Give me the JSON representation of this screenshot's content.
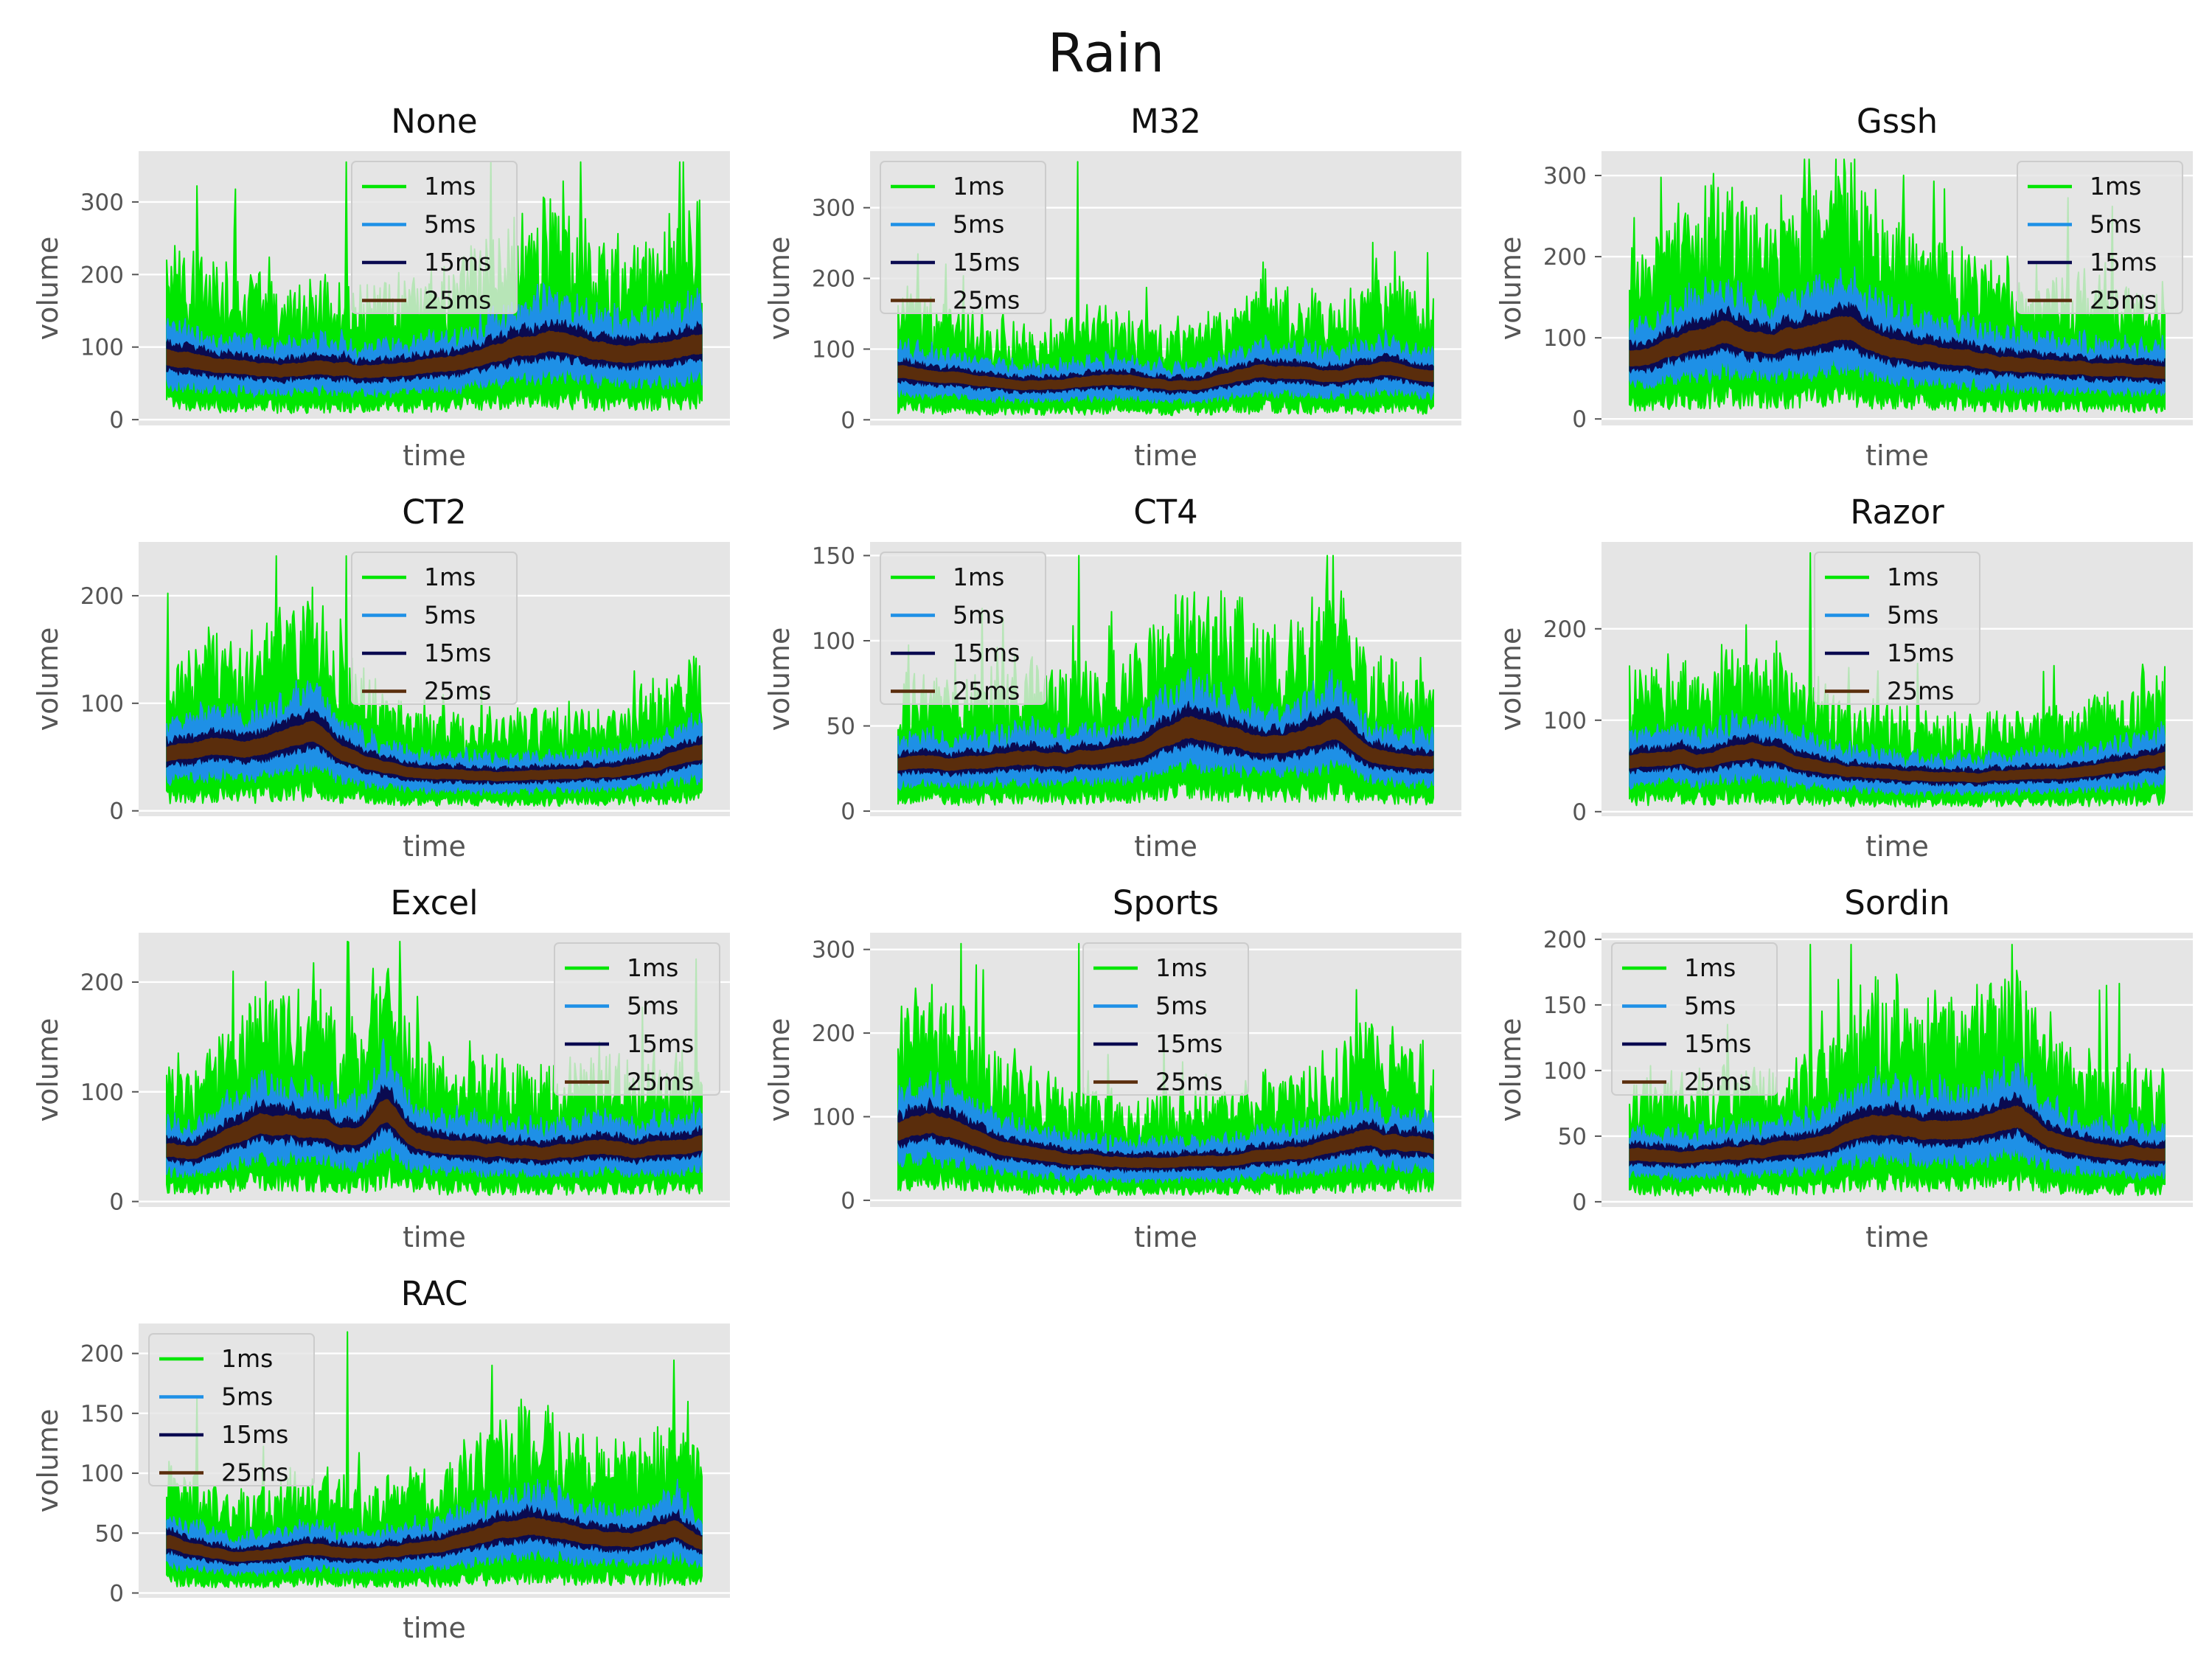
{
  "figure": {
    "title": "Rain",
    "colors": {
      "axes_bg": "#e5e5e5",
      "grid": "#ffffff",
      "text": "#111111",
      "tick_text": "#555555",
      "legend_bg": "#e5e5e5",
      "legend_edge": "#cccccc"
    }
  },
  "chart_data": [
    {
      "type": "line",
      "title": "None",
      "xlabel": "time",
      "ylabel": "volume",
      "ylim": [
        -8,
        370
      ],
      "yticks": [
        0,
        100,
        200,
        300
      ],
      "legend_loc": "upper center",
      "base_profile": [
        88,
        84,
        80,
        75,
        70,
        72,
        76,
        74,
        70,
        68,
        72,
        78,
        82,
        90,
        100,
        108,
        112,
        105,
        98,
        94,
        96,
        102,
        110
      ],
      "peak_max": 355,
      "series": [
        {
          "name": "1ms",
          "color": "#00e600"
        },
        {
          "name": "5ms",
          "color": "#1e90e6"
        },
        {
          "name": "15ms",
          "color": "#0a0a50"
        },
        {
          "name": "25ms",
          "color": "#5a2d0c"
        }
      ]
    },
    {
      "type": "line",
      "title": "M32",
      "xlabel": "time",
      "ylabel": "volume",
      "ylim": [
        -8,
        380
      ],
      "yticks": [
        0,
        100,
        200,
        300
      ],
      "legend_loc": "upper left",
      "base_profile": [
        70,
        66,
        62,
        58,
        55,
        52,
        50,
        54,
        58,
        60,
        56,
        52,
        50,
        58,
        66,
        72,
        70,
        68,
        65,
        70,
        76,
        68,
        62
      ],
      "peak_max": 365,
      "series": [
        {
          "name": "1ms",
          "color": "#00e600"
        },
        {
          "name": "5ms",
          "color": "#1e90e6"
        },
        {
          "name": "15ms",
          "color": "#0a0a50"
        },
        {
          "name": "25ms",
          "color": "#5a2d0c"
        }
      ]
    },
    {
      "type": "line",
      "title": "Gssh",
      "xlabel": "time",
      "ylabel": "volume",
      "ylim": [
        -8,
        330
      ],
      "yticks": [
        0,
        100,
        200,
        300
      ],
      "legend_loc": "upper right",
      "base_profile": [
        75,
        82,
        95,
        105,
        110,
        100,
        98,
        104,
        112,
        118,
        100,
        90,
        84,
        80,
        76,
        72,
        70,
        68,
        66,
        65,
        63,
        62,
        60
      ],
      "peak_max": 320,
      "series": [
        {
          "name": "1ms",
          "color": "#00e600"
        },
        {
          "name": "5ms",
          "color": "#1e90e6"
        },
        {
          "name": "15ms",
          "color": "#0a0a50"
        },
        {
          "name": "25ms",
          "color": "#5a2d0c"
        }
      ]
    },
    {
      "type": "line",
      "title": "CT2",
      "xlabel": "time",
      "ylabel": "volume",
      "ylim": [
        -5,
        250
      ],
      "yticks": [
        0,
        100,
        200
      ],
      "legend_loc": "upper center",
      "base_profile": [
        55,
        58,
        62,
        60,
        64,
        70,
        78,
        60,
        48,
        42,
        38,
        36,
        35,
        34,
        33,
        34,
        35,
        36,
        38,
        40,
        44,
        52,
        58
      ],
      "peak_max": 237,
      "series": [
        {
          "name": "1ms",
          "color": "#00e600"
        },
        {
          "name": "5ms",
          "color": "#1e90e6"
        },
        {
          "name": "15ms",
          "color": "#0a0a50"
        },
        {
          "name": "25ms",
          "color": "#5a2d0c"
        }
      ]
    },
    {
      "type": "line",
      "title": "CT4",
      "xlabel": "time",
      "ylabel": "volume",
      "ylim": [
        -3,
        158
      ],
      "yticks": [
        0,
        50,
        100,
        150
      ],
      "legend_loc": "upper left",
      "base_profile": [
        28,
        30,
        29,
        30,
        31,
        33,
        32,
        31,
        33,
        34,
        38,
        46,
        52,
        48,
        44,
        40,
        42,
        46,
        52,
        38,
        32,
        30,
        29
      ],
      "peak_max": 150,
      "series": [
        {
          "name": "1ms",
          "color": "#00e600"
        },
        {
          "name": "5ms",
          "color": "#1e90e6"
        },
        {
          "name": "15ms",
          "color": "#0a0a50"
        },
        {
          "name": "25ms",
          "color": "#5a2d0c"
        }
      ]
    },
    {
      "type": "line",
      "title": "Razor",
      "xlabel": "time",
      "ylabel": "volume",
      "ylim": [
        -5,
        295
      ],
      "yticks": [
        0,
        100,
        200
      ],
      "legend_loc": "upper center",
      "base_profile": [
        55,
        60,
        62,
        58,
        64,
        70,
        66,
        56,
        50,
        46,
        44,
        42,
        40,
        40,
        39,
        40,
        42,
        43,
        44,
        46,
        50,
        56,
        62
      ],
      "peak_max": 283,
      "series": [
        {
          "name": "1ms",
          "color": "#00e600"
        },
        {
          "name": "5ms",
          "color": "#1e90e6"
        },
        {
          "name": "15ms",
          "color": "#0a0a50"
        },
        {
          "name": "25ms",
          "color": "#5a2d0c"
        }
      ]
    },
    {
      "type": "line",
      "title": "Excel",
      "xlabel": "time",
      "ylabel": "volume",
      "ylim": [
        -5,
        245
      ],
      "yticks": [
        0,
        100,
        200
      ],
      "legend_loc": "upper right",
      "base_profile": [
        50,
        45,
        55,
        65,
        72,
        74,
        70,
        64,
        62,
        90,
        60,
        54,
        52,
        50,
        48,
        47,
        46,
        50,
        52,
        48,
        50,
        52,
        55
      ],
      "peak_max": 237,
      "series": [
        {
          "name": "1ms",
          "color": "#00e600"
        },
        {
          "name": "5ms",
          "color": "#1e90e6"
        },
        {
          "name": "15ms",
          "color": "#0a0a50"
        },
        {
          "name": "25ms",
          "color": "#5a2d0c"
        }
      ]
    },
    {
      "type": "line",
      "title": "Sports",
      "xlabel": "time",
      "ylabel": "volume",
      "ylim": [
        -8,
        320
      ],
      "yticks": [
        0,
        100,
        200,
        300
      ],
      "legend_loc": "upper center",
      "base_profile": [
        85,
        95,
        90,
        78,
        68,
        60,
        56,
        52,
        50,
        48,
        47,
        46,
        48,
        50,
        52,
        55,
        58,
        62,
        70,
        78,
        74,
        70,
        68
      ],
      "peak_max": 307,
      "series": [
        {
          "name": "1ms",
          "color": "#00e600"
        },
        {
          "name": "5ms",
          "color": "#1e90e6"
        },
        {
          "name": "15ms",
          "color": "#0a0a50"
        },
        {
          "name": "25ms",
          "color": "#5a2d0c"
        }
      ]
    },
    {
      "type": "line",
      "title": "Sordin",
      "xlabel": "time",
      "ylabel": "volume",
      "ylim": [
        -4,
        205
      ],
      "yticks": [
        0,
        50,
        100,
        150,
        200
      ],
      "legend_loc": "upper left",
      "base_profile": [
        38,
        36,
        35,
        36,
        38,
        40,
        42,
        44,
        46,
        55,
        62,
        60,
        58,
        56,
        58,
        62,
        70,
        52,
        46,
        42,
        40,
        38,
        36
      ],
      "peak_max": 196,
      "series": [
        {
          "name": "1ms",
          "color": "#00e600"
        },
        {
          "name": "5ms",
          "color": "#1e90e6"
        },
        {
          "name": "15ms",
          "color": "#0a0a50"
        },
        {
          "name": "25ms",
          "color": "#5a2d0c"
        }
      ]
    },
    {
      "type": "line",
      "title": "RAC",
      "xlabel": "time",
      "ylabel": "volume",
      "ylim": [
        -4,
        225
      ],
      "yticks": [
        0,
        50,
        100,
        150,
        200
      ],
      "legend_loc": "upper left",
      "base_profile": [
        45,
        38,
        34,
        32,
        33,
        36,
        38,
        36,
        34,
        36,
        38,
        40,
        44,
        50,
        56,
        58,
        55,
        50,
        48,
        46,
        50,
        56,
        42
      ],
      "peak_max": 218,
      "series": [
        {
          "name": "1ms",
          "color": "#00e600"
        },
        {
          "name": "5ms",
          "color": "#1e90e6"
        },
        {
          "name": "15ms",
          "color": "#0a0a50"
        },
        {
          "name": "25ms",
          "color": "#5a2d0c"
        }
      ]
    }
  ]
}
